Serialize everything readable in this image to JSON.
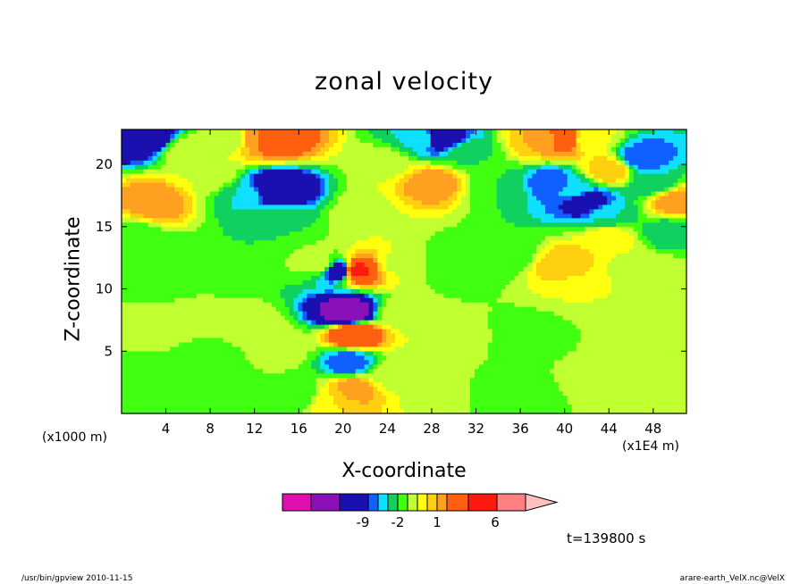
{
  "chart_data": {
    "type": "heatmap",
    "title": "zonal velocity",
    "xlabel": "X-coordinate",
    "ylabel": "Z-coordinate",
    "x_unit_label": "(x1E4 m)",
    "y_unit_label": "(x1000 m)",
    "x_ticks": [
      4,
      8,
      12,
      16,
      20,
      24,
      28,
      32,
      36,
      40,
      44,
      48
    ],
    "y_ticks": [
      5,
      10,
      15,
      20
    ],
    "xlim": [
      0,
      51
    ],
    "ylim": [
      0,
      22.8
    ],
    "colorbar": {
      "colors": [
        "#e010b0",
        "#8a10b8",
        "#1a10b0",
        "#1060ff",
        "#10e0ff",
        "#10d060",
        "#40ff10",
        "#c0ff30",
        "#ffff10",
        "#ffd010",
        "#ffa020",
        "#ff6010",
        "#ff1a10",
        "#ff8080",
        "#ffc0c0"
      ],
      "tick_labels": [
        "-9",
        "-2",
        "1",
        "6"
      ]
    },
    "field_points": [
      {
        "x": 2,
        "z": 22.2,
        "u": -4
      },
      {
        "x": 3,
        "z": 17,
        "u": 2
      },
      {
        "x": 1,
        "z": 14,
        "u": -0.5
      },
      {
        "x": 8,
        "z": 19,
        "u": 0.5
      },
      {
        "x": 10,
        "z": 22,
        "u": 0
      },
      {
        "x": 12,
        "z": 22,
        "u": 2
      },
      {
        "x": 14,
        "z": 22,
        "u": 3
      },
      {
        "x": 14,
        "z": 18,
        "u": -4
      },
      {
        "x": 11,
        "z": 17.5,
        "u": -1
      },
      {
        "x": 14,
        "z": 15.5,
        "u": -0.5
      },
      {
        "x": 8,
        "z": 12,
        "u": -0.5
      },
      {
        "x": 4,
        "z": 10.5,
        "u": -0.5
      },
      {
        "x": 3,
        "z": 7,
        "u": 0.3
      },
      {
        "x": 8,
        "z": 4,
        "u": -0.5
      },
      {
        "x": 6,
        "z": 8,
        "u": 0.3
      },
      {
        "x": 12,
        "z": 7,
        "u": 0.3
      },
      {
        "x": 14,
        "z": 5,
        "u": 0.3
      },
      {
        "x": 2,
        "z": 2,
        "u": -0.5
      },
      {
        "x": 12,
        "z": 1,
        "u": -0.5
      },
      {
        "x": 16,
        "z": 1.5,
        "u": -0.5
      },
      {
        "x": 18,
        "z": 12,
        "u": 0.4
      },
      {
        "x": 19.8,
        "z": 11.5,
        "u": -4
      },
      {
        "x": 21,
        "z": 11.5,
        "u": 5
      },
      {
        "x": 20.5,
        "z": 8,
        "u": -6
      },
      {
        "x": 21,
        "z": 6.5,
        "u": 4
      },
      {
        "x": 20.5,
        "z": 4,
        "u": -2
      },
      {
        "x": 21,
        "z": 2,
        "u": 2
      },
      {
        "x": 19,
        "z": 1,
        "u": 1
      },
      {
        "x": 22,
        "z": 16,
        "u": 0.4
      },
      {
        "x": 24,
        "z": 20,
        "u": 0.4
      },
      {
        "x": 25,
        "z": 12,
        "u": 0.4
      },
      {
        "x": 25,
        "z": 8,
        "u": 0.4
      },
      {
        "x": 24,
        "z": 3,
        "u": 0.3
      },
      {
        "x": 28,
        "z": 18.5,
        "u": 2
      },
      {
        "x": 27,
        "z": 22,
        "u": -1
      },
      {
        "x": 29,
        "z": 22,
        "u": -3
      },
      {
        "x": 31,
        "z": 21,
        "u": -0.5
      },
      {
        "x": 30,
        "z": 12,
        "u": -0.5
      },
      {
        "x": 30,
        "z": 6,
        "u": 0.3
      },
      {
        "x": 28,
        "z": 2,
        "u": 0.2
      },
      {
        "x": 34,
        "z": 18,
        "u": -0.5
      },
      {
        "x": 35,
        "z": 13,
        "u": -0.5
      },
      {
        "x": 37,
        "z": 6,
        "u": -0.5
      },
      {
        "x": 36,
        "z": 2,
        "u": -0.5
      },
      {
        "x": 38,
        "z": 22,
        "u": 1.5
      },
      {
        "x": 40,
        "z": 22,
        "u": 3
      },
      {
        "x": 42,
        "z": 22,
        "u": 0.5
      },
      {
        "x": 39,
        "z": 18.5,
        "u": -2
      },
      {
        "x": 41,
        "z": 18,
        "u": -1
      },
      {
        "x": 42,
        "z": 17,
        "u": -3
      },
      {
        "x": 44,
        "z": 19.5,
        "u": 1.5
      },
      {
        "x": 44,
        "z": 16,
        "u": -1
      },
      {
        "x": 47,
        "z": 20.5,
        "u": -2
      },
      {
        "x": 48,
        "z": 18.5,
        "u": -1
      },
      {
        "x": 50,
        "z": 17,
        "u": 2
      },
      {
        "x": 49.5,
        "z": 14.5,
        "u": -1
      },
      {
        "x": 40,
        "z": 12,
        "u": 1.5
      },
      {
        "x": 44,
        "z": 14,
        "u": 1
      },
      {
        "x": 42,
        "z": 10,
        "u": 0.5
      },
      {
        "x": 46,
        "z": 12,
        "u": 0.4
      },
      {
        "x": 49,
        "z": 11,
        "u": 0.4
      },
      {
        "x": 46,
        "z": 6,
        "u": 0.4
      },
      {
        "x": 42,
        "z": 3,
        "u": 0.3
      },
      {
        "x": 49,
        "z": 4,
        "u": 0.3
      },
      {
        "x": 50,
        "z": 1,
        "u": 0.3
      },
      {
        "x": 6,
        "z": 21,
        "u": 0.5
      }
    ],
    "time_label": "t=139800 s"
  },
  "footer": {
    "left": "/usr/bin/gpview   2010-11-15",
    "right": "arare-earth_VelX.nc@VelX"
  }
}
